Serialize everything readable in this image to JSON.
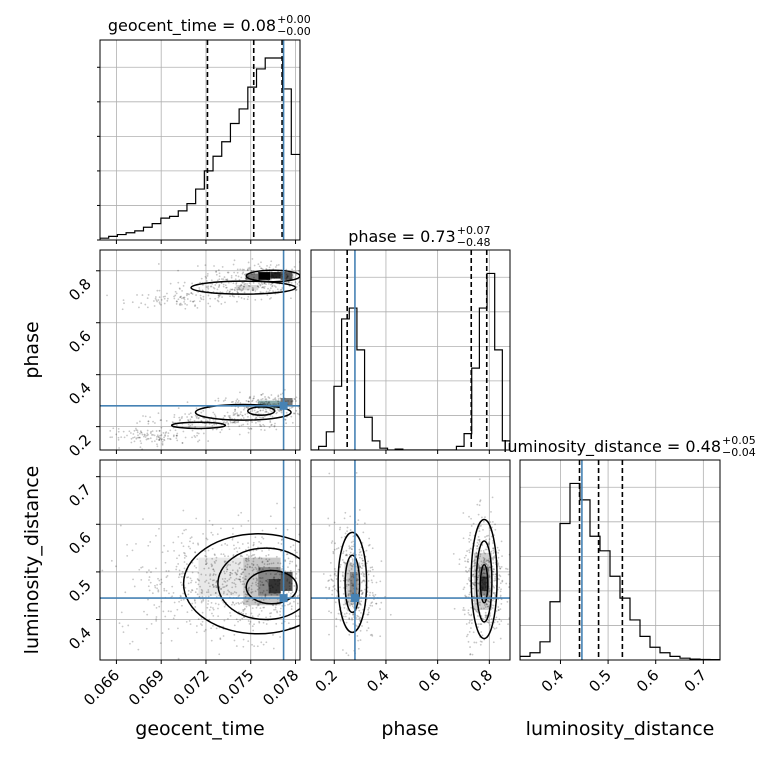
{
  "chart_data": {
    "type": "corner",
    "parameters": [
      "geocent_time",
      "phase",
      "luminosity_distance"
    ],
    "axis_labels": {
      "geocent_time": "geocent_time",
      "phase": "phase",
      "luminosity_distance": "luminosity_distance"
    },
    "titles": {
      "geocent_time": {
        "name": "geocent_time",
        "value": "0.08",
        "plus": "+0.00",
        "minus": "−0.00"
      },
      "phase": {
        "name": "phase",
        "value": "0.73",
        "plus": "+0.07",
        "minus": "−0.48"
      },
      "luminosity_distance": {
        "name": "luminosity_distance",
        "value": "0.48",
        "plus": "+0.05",
        "minus": "−0.04"
      }
    },
    "ranges": {
      "geocent_time": [
        0.0649,
        0.0783
      ],
      "phase": [
        0.11,
        0.88
      ],
      "luminosity_distance": [
        0.315,
        0.735
      ]
    },
    "ticks": {
      "geocent_time": [
        "0.066",
        "0.069",
        "0.072",
        "0.075",
        "0.078"
      ],
      "phase": [
        "0.2",
        "0.4",
        "0.6",
        "0.8"
      ],
      "luminosity_distance": [
        "0.4",
        "0.5",
        "0.6",
        "0.7"
      ]
    },
    "truths": {
      "geocent_time": 0.0772,
      "phase": 0.28,
      "luminosity_distance": 0.445
    },
    "quantiles": {
      "geocent_time": [
        0.0721,
        0.0752,
        0.0771
      ],
      "phase": [
        0.25,
        0.73,
        0.79
      ],
      "luminosity_distance": [
        0.44,
        0.48,
        0.53
      ]
    },
    "histograms": {
      "geocent_time": [
        0.01,
        0.02,
        0.03,
        0.04,
        0.05,
        0.07,
        0.09,
        0.12,
        0.13,
        0.16,
        0.2,
        0.28,
        0.38,
        0.46,
        0.54,
        0.64,
        0.72,
        0.84,
        0.94,
        1.0,
        1.0,
        0.83,
        0.47
      ],
      "phase": [
        0,
        0.02,
        0.1,
        0.35,
        0.72,
        0.78,
        0.55,
        0.18,
        0.05,
        0.01,
        0,
        0.005,
        0,
        0,
        0,
        0,
        0,
        0,
        0,
        0.02,
        0.09,
        0.45,
        0.78,
        0.97,
        0.55,
        0.05
      ],
      "luminosity_distance": [
        0.02,
        0.04,
        0.1,
        0.32,
        0.75,
        0.97,
        0.88,
        0.68,
        0.6,
        0.46,
        0.34,
        0.22,
        0.13,
        0.07,
        0.04,
        0.02,
        0.01,
        0.005,
        0.003,
        0.002
      ]
    },
    "grid": true
  }
}
